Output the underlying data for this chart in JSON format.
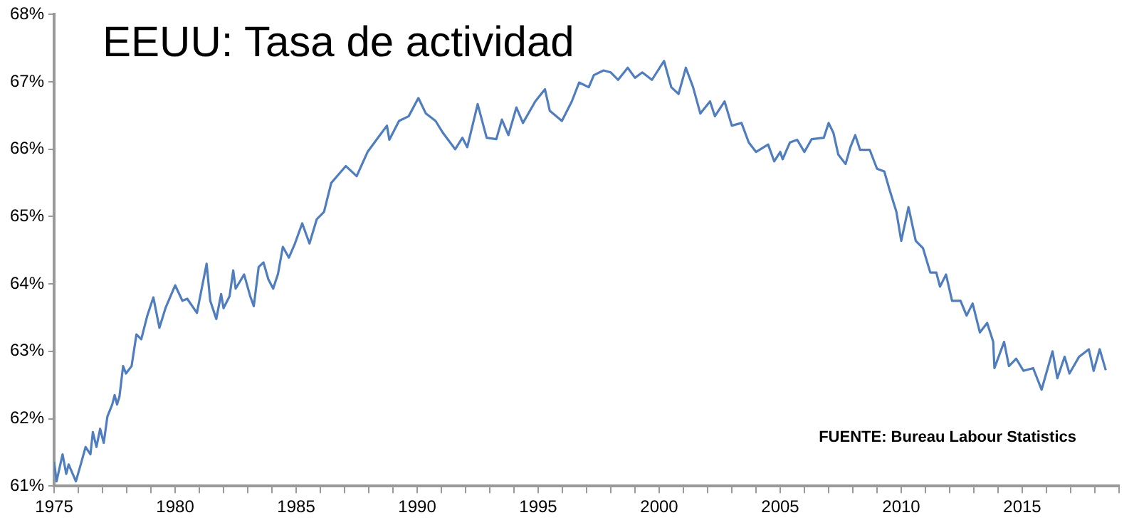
{
  "chart_data": {
    "type": "line",
    "title": "EEUU: Tasa de actividad",
    "annotations": [
      "FUENTE: Bureau Labour Statistics"
    ],
    "x": [
      1975.0,
      1975.1,
      1975.35,
      1975.5,
      1975.6,
      1975.9,
      1976.1,
      1976.3,
      1976.5,
      1976.6,
      1976.75,
      1976.9,
      1977.05,
      1977.2,
      1977.4,
      1977.5,
      1977.6,
      1977.7,
      1977.85,
      1977.97,
      1978.2,
      1978.4,
      1978.6,
      1978.85,
      1979.1,
      1979.35,
      1979.6,
      1980.0,
      1980.3,
      1980.5,
      1980.9,
      1981.3,
      1981.45,
      1981.7,
      1981.9,
      1982.0,
      1982.25,
      1982.4,
      1982.5,
      1982.85,
      1983.1,
      1983.25,
      1983.45,
      1983.65,
      1983.85,
      1984.05,
      1984.25,
      1984.45,
      1984.7,
      1984.95,
      1985.25,
      1985.55,
      1985.85,
      1986.15,
      1986.45,
      1987.05,
      1987.5,
      1987.95,
      1988.4,
      1988.75,
      1988.85,
      1989.25,
      1989.65,
      1990.05,
      1990.36,
      1990.76,
      1991.07,
      1991.57,
      1991.87,
      1992.07,
      1992.5,
      1992.87,
      1993.27,
      1993.5,
      1993.77,
      1994.1,
      1994.37,
      1994.88,
      1995.28,
      1995.48,
      1995.98,
      1996.39,
      1996.69,
      1997.09,
      1997.3,
      1997.7,
      1998.0,
      1998.3,
      1998.7,
      1999.0,
      1999.3,
      1999.7,
      2000.2,
      2000.5,
      2000.8,
      2001.1,
      2001.4,
      2001.7,
      2002.1,
      2002.3,
      2002.7,
      2003.0,
      2003.4,
      2003.7,
      2004.0,
      2004.5,
      2004.75,
      2005.0,
      2005.1,
      2005.4,
      2005.7,
      2006.0,
      2006.3,
      2006.8,
      2007.0,
      2007.2,
      2007.4,
      2007.7,
      2007.9,
      2008.1,
      2008.3,
      2008.7,
      2009.0,
      2009.3,
      2009.5,
      2009.8,
      2010.0,
      2010.3,
      2010.6,
      2010.9,
      2011.2,
      2011.45,
      2011.6,
      2011.85,
      2012.1,
      2012.45,
      2012.7,
      2012.95,
      2013.25,
      2013.55,
      2013.8,
      2013.85,
      2014.25,
      2014.45,
      2014.75,
      2015.05,
      2015.45,
      2015.8,
      2016.25,
      2016.45,
      2016.75,
      2016.95,
      2017.35,
      2017.75,
      2017.95,
      2018.2,
      2018.45
    ],
    "series": [
      {
        "color": "#4f7dbd",
        "values": [
          61.36,
          61.07,
          61.47,
          61.18,
          61.32,
          61.07,
          61.32,
          61.58,
          61.47,
          61.8,
          61.58,
          61.85,
          61.64,
          62.03,
          62.21,
          62.35,
          62.21,
          62.33,
          62.78,
          62.67,
          62.78,
          63.25,
          63.18,
          63.53,
          63.8,
          63.35,
          63.64,
          63.98,
          63.75,
          63.78,
          63.57,
          64.3,
          63.75,
          63.48,
          63.85,
          63.64,
          63.82,
          64.2,
          63.93,
          64.14,
          63.82,
          63.67,
          64.25,
          64.32,
          64.07,
          63.93,
          64.15,
          64.55,
          64.39,
          64.6,
          64.9,
          64.6,
          64.96,
          65.07,
          65.5,
          65.75,
          65.6,
          65.96,
          66.18,
          66.35,
          66.14,
          66.42,
          66.49,
          66.76,
          66.53,
          66.42,
          66.24,
          66.0,
          66.17,
          66.03,
          66.67,
          66.17,
          66.15,
          66.44,
          66.21,
          66.62,
          66.39,
          66.71,
          66.89,
          66.57,
          66.42,
          66.71,
          66.99,
          66.92,
          67.1,
          67.17,
          67.14,
          67.03,
          67.21,
          67.06,
          67.14,
          67.03,
          67.31,
          66.92,
          66.82,
          67.21,
          66.92,
          66.53,
          66.71,
          66.49,
          66.71,
          66.35,
          66.39,
          66.1,
          65.96,
          66.07,
          65.82,
          65.96,
          65.85,
          66.1,
          66.14,
          65.96,
          66.15,
          66.17,
          66.39,
          66.24,
          65.92,
          65.78,
          66.03,
          66.21,
          65.99,
          65.99,
          65.71,
          65.67,
          65.42,
          65.07,
          64.64,
          65.14,
          64.64,
          64.53,
          64.17,
          64.17,
          63.96,
          64.14,
          63.75,
          63.75,
          63.53,
          63.71,
          63.28,
          63.42,
          63.14,
          62.75,
          63.14,
          62.78,
          62.89,
          62.71,
          62.75,
          62.43,
          63.0,
          62.6,
          62.92,
          62.67,
          62.92,
          63.03,
          62.71,
          63.03,
          62.72
        ]
      }
    ],
    "xlim": [
      1975,
      2019
    ],
    "xticks": [
      1975,
      {
        "value": 1976,
        "label": null
      },
      {
        "value": 1977,
        "label": null
      },
      {
        "value": 1978,
        "label": null
      },
      {
        "value": 1979,
        "label": null
      },
      1980,
      {
        "value": 1981,
        "label": null
      },
      {
        "value": 1982,
        "label": null
      },
      {
        "value": 1983,
        "label": null
      },
      {
        "value": 1984,
        "label": null
      },
      1985,
      {
        "value": 1986,
        "label": null
      },
      {
        "value": 1987,
        "label": null
      },
      {
        "value": 1988,
        "label": null
      },
      {
        "value": 1989,
        "label": null
      },
      1990,
      {
        "value": 1991,
        "label": null
      },
      {
        "value": 1992,
        "label": null
      },
      {
        "value": 1993,
        "label": null
      },
      {
        "value": 1994,
        "label": null
      },
      1995,
      {
        "value": 1996,
        "label": null
      },
      {
        "value": 1997,
        "label": null
      },
      {
        "value": 1998,
        "label": null
      },
      {
        "value": 1999,
        "label": null
      },
      2000,
      {
        "value": 2001,
        "label": null
      },
      {
        "value": 2002,
        "label": null
      },
      {
        "value": 2003,
        "label": null
      },
      {
        "value": 2004,
        "label": null
      },
      2005,
      {
        "value": 2006,
        "label": null
      },
      {
        "value": 2007,
        "label": null
      },
      {
        "value": 2008,
        "label": null
      },
      {
        "value": 2009,
        "label": null
      },
      2010,
      {
        "value": 2011,
        "label": null
      },
      {
        "value": 2012,
        "label": null
      },
      {
        "value": 2013,
        "label": null
      },
      {
        "value": 2014,
        "label": null
      },
      2015,
      {
        "value": 2016,
        "label": null
      },
      {
        "value": 2017,
        "label": null
      },
      {
        "value": 2018,
        "label": null
      },
      {
        "value": 2019,
        "label": null
      }
    ],
    "ylim": [
      61,
      68
    ],
    "yticks": [
      {
        "value": 61,
        "label": "61%"
      },
      {
        "value": 62,
        "label": "62%"
      },
      {
        "value": 63,
        "label": "63%"
      },
      {
        "value": 64,
        "label": "64%"
      },
      {
        "value": 65,
        "label": "65%"
      },
      {
        "value": 66,
        "label": "66%"
      },
      {
        "value": 67,
        "label": "67%"
      },
      {
        "value": 68,
        "label": "68%"
      }
    ],
    "grid": false,
    "legend": false,
    "marker": "none",
    "line_style": "solid"
  }
}
